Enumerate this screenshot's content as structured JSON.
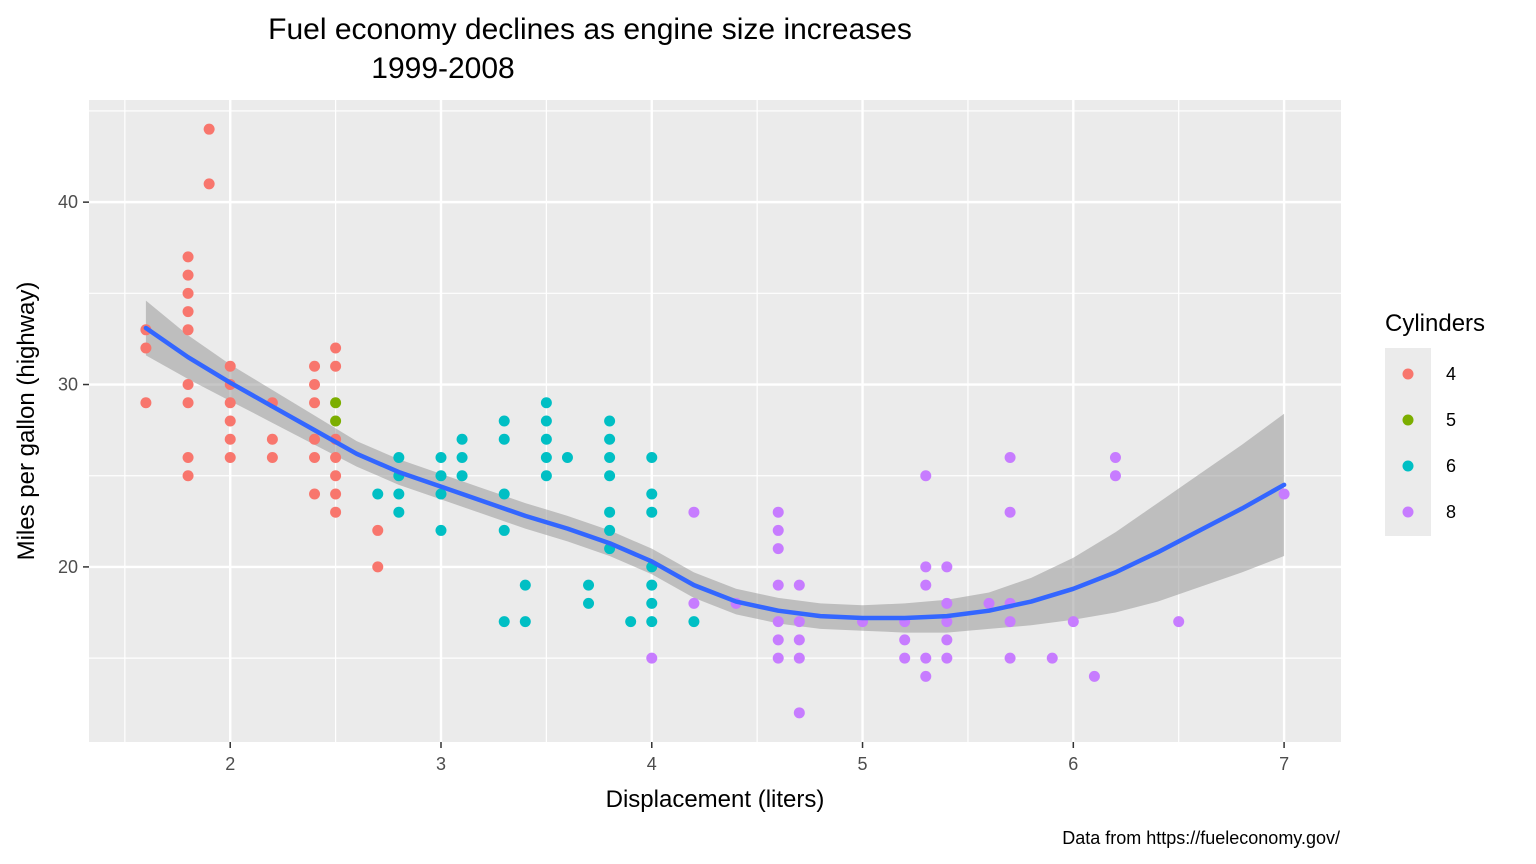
{
  "chart_data": {
    "type": "scatter",
    "title": "Fuel economy declines as engine size increases",
    "subtitle": "1999-2008",
    "xlabel": "Displacement (liters)",
    "ylabel": "Miles per gallon (highway)",
    "caption": "Data from https://fueleconomy.gov/",
    "xlim": [
      1.33,
      7.27
    ],
    "ylim": [
      10.4,
      45.6
    ],
    "x_ticks": [
      2,
      3,
      4,
      5,
      6,
      7
    ],
    "y_ticks": [
      20,
      30,
      40
    ],
    "grid": true,
    "legend": {
      "title": "Cylinders",
      "position": "right"
    },
    "series": [
      {
        "name": "4",
        "color": "#F8766D",
        "points": [
          [
            1.6,
            33
          ],
          [
            1.6,
            32
          ],
          [
            1.6,
            29
          ],
          [
            1.8,
            37
          ],
          [
            1.8,
            36
          ],
          [
            1.8,
            35
          ],
          [
            1.8,
            34
          ],
          [
            1.8,
            33
          ],
          [
            1.8,
            30
          ],
          [
            1.8,
            29
          ],
          [
            1.8,
            26
          ],
          [
            1.8,
            25
          ],
          [
            1.9,
            44
          ],
          [
            1.9,
            41
          ],
          [
            2.0,
            31
          ],
          [
            2.0,
            30
          ],
          [
            2.0,
            29
          ],
          [
            2.0,
            28
          ],
          [
            2.0,
            27
          ],
          [
            2.0,
            26
          ],
          [
            2.2,
            29
          ],
          [
            2.2,
            27
          ],
          [
            2.2,
            26
          ],
          [
            2.4,
            31
          ],
          [
            2.4,
            30
          ],
          [
            2.4,
            29
          ],
          [
            2.4,
            27
          ],
          [
            2.4,
            26
          ],
          [
            2.4,
            24
          ],
          [
            2.5,
            32
          ],
          [
            2.5,
            31
          ],
          [
            2.5,
            27
          ],
          [
            2.5,
            26
          ],
          [
            2.5,
            25
          ],
          [
            2.5,
            24
          ],
          [
            2.5,
            23
          ],
          [
            2.7,
            22
          ],
          [
            2.7,
            20
          ]
        ]
      },
      {
        "name": "5",
        "color": "#7CAE00",
        "points": [
          [
            2.5,
            29
          ],
          [
            2.5,
            28
          ]
        ]
      },
      {
        "name": "6",
        "color": "#00BFC4",
        "points": [
          [
            2.7,
            24
          ],
          [
            2.8,
            26
          ],
          [
            2.8,
            25
          ],
          [
            2.8,
            24
          ],
          [
            2.8,
            23
          ],
          [
            3.0,
            26
          ],
          [
            3.0,
            25
          ],
          [
            3.0,
            24
          ],
          [
            3.0,
            22
          ],
          [
            3.1,
            27
          ],
          [
            3.1,
            26
          ],
          [
            3.1,
            25
          ],
          [
            3.3,
            28
          ],
          [
            3.3,
            27
          ],
          [
            3.3,
            24
          ],
          [
            3.3,
            22
          ],
          [
            3.3,
            17
          ],
          [
            3.4,
            19
          ],
          [
            3.4,
            17
          ],
          [
            3.5,
            29
          ],
          [
            3.5,
            28
          ],
          [
            3.5,
            27
          ],
          [
            3.5,
            26
          ],
          [
            3.5,
            25
          ],
          [
            3.6,
            26
          ],
          [
            3.7,
            19
          ],
          [
            3.7,
            18
          ],
          [
            3.8,
            28
          ],
          [
            3.8,
            27
          ],
          [
            3.8,
            26
          ],
          [
            3.8,
            25
          ],
          [
            3.8,
            23
          ],
          [
            3.8,
            22
          ],
          [
            3.8,
            21
          ],
          [
            3.9,
            17
          ],
          [
            4.0,
            26
          ],
          [
            4.0,
            24
          ],
          [
            4.0,
            23
          ],
          [
            4.0,
            20
          ],
          [
            4.0,
            19
          ],
          [
            4.0,
            18
          ],
          [
            4.0,
            17
          ],
          [
            4.2,
            17
          ]
        ]
      },
      {
        "name": "8",
        "color": "#C77CFF",
        "points": [
          [
            4.0,
            15
          ],
          [
            4.2,
            23
          ],
          [
            4.2,
            18
          ],
          [
            4.4,
            18
          ],
          [
            4.6,
            23
          ],
          [
            4.6,
            22
          ],
          [
            4.6,
            21
          ],
          [
            4.6,
            19
          ],
          [
            4.6,
            17
          ],
          [
            4.6,
            16
          ],
          [
            4.6,
            15
          ],
          [
            4.7,
            19
          ],
          [
            4.7,
            17
          ],
          [
            4.7,
            16
          ],
          [
            4.7,
            15
          ],
          [
            4.7,
            12
          ],
          [
            5.0,
            17
          ],
          [
            5.2,
            17
          ],
          [
            5.2,
            16
          ],
          [
            5.2,
            15
          ],
          [
            5.3,
            25
          ],
          [
            5.3,
            20
          ],
          [
            5.3,
            19
          ],
          [
            5.3,
            15
          ],
          [
            5.3,
            14
          ],
          [
            5.4,
            20
          ],
          [
            5.4,
            18
          ],
          [
            5.4,
            17
          ],
          [
            5.4,
            16
          ],
          [
            5.4,
            15
          ],
          [
            5.6,
            18
          ],
          [
            5.7,
            26
          ],
          [
            5.7,
            23
          ],
          [
            5.7,
            18
          ],
          [
            5.7,
            17
          ],
          [
            5.7,
            15
          ],
          [
            5.9,
            15
          ],
          [
            6.0,
            17
          ],
          [
            6.1,
            14
          ],
          [
            6.2,
            26
          ],
          [
            6.2,
            25
          ],
          [
            6.5,
            17
          ],
          [
            7.0,
            24
          ]
        ]
      }
    ],
    "smooth": {
      "method": "loess",
      "color": "#3366FF",
      "band_color": "#999999",
      "points": [
        [
          1.6,
          33.1,
          31.6,
          34.6
        ],
        [
          1.8,
          31.5,
          30.3,
          32.7
        ],
        [
          2.0,
          30.1,
          29.1,
          31.1
        ],
        [
          2.2,
          28.8,
          27.9,
          29.7
        ],
        [
          2.4,
          27.5,
          26.7,
          28.3
        ],
        [
          2.6,
          26.2,
          25.5,
          26.9
        ],
        [
          2.8,
          25.2,
          24.5,
          25.9
        ],
        [
          3.0,
          24.4,
          23.7,
          25.1
        ],
        [
          3.2,
          23.6,
          22.9,
          24.3
        ],
        [
          3.4,
          22.8,
          22.1,
          23.5
        ],
        [
          3.6,
          22.1,
          21.4,
          22.8
        ],
        [
          3.8,
          21.3,
          20.6,
          22.0
        ],
        [
          4.0,
          20.3,
          19.6,
          21.0
        ],
        [
          4.2,
          19.0,
          18.3,
          19.7
        ],
        [
          4.4,
          18.1,
          17.4,
          18.8
        ],
        [
          4.6,
          17.6,
          16.9,
          18.3
        ],
        [
          4.8,
          17.3,
          16.6,
          18.0
        ],
        [
          5.0,
          17.2,
          16.5,
          17.9
        ],
        [
          5.2,
          17.2,
          16.4,
          18.0
        ],
        [
          5.4,
          17.3,
          16.4,
          18.2
        ],
        [
          5.6,
          17.6,
          16.6,
          18.6
        ],
        [
          5.8,
          18.1,
          16.8,
          19.4
        ],
        [
          6.0,
          18.8,
          17.1,
          20.5
        ],
        [
          6.2,
          19.7,
          17.5,
          21.9
        ],
        [
          6.4,
          20.8,
          18.1,
          23.5
        ],
        [
          6.6,
          22.0,
          18.9,
          25.1
        ],
        [
          6.8,
          23.2,
          19.7,
          26.7
        ],
        [
          7.0,
          24.5,
          20.6,
          28.4
        ]
      ]
    }
  }
}
